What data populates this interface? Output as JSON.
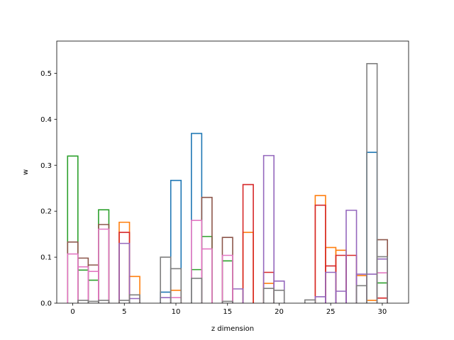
{
  "chart_data": {
    "type": "step",
    "xlabel": "z dimension",
    "ylabel": "w",
    "xlim": [
      -1.55,
      32.55
    ],
    "ylim": [
      0,
      0.57
    ],
    "xticks": [
      0,
      5,
      10,
      15,
      20,
      25,
      30
    ],
    "yticks": [
      0.0,
      0.1,
      0.2,
      0.3,
      0.4,
      0.5
    ],
    "ytick_labels": [
      "0.0",
      "0.1",
      "0.2",
      "0.3",
      "0.4",
      "0.5"
    ],
    "grid": false,
    "bins": 32,
    "series": [
      {
        "color": "#1f77b4",
        "values": [
          0,
          0,
          0,
          0,
          0,
          0,
          0,
          0,
          0,
          0.024,
          0.267,
          0,
          0.369,
          0,
          0,
          0,
          0,
          0,
          0,
          0,
          0,
          0,
          0,
          0,
          0,
          0,
          0,
          0,
          0,
          0.328,
          0,
          0
        ]
      },
      {
        "color": "#ff7f0e",
        "values": [
          0,
          0,
          0,
          0,
          0,
          0.176,
          0.058,
          0,
          0,
          0,
          0.028,
          0,
          0,
          0,
          0,
          0,
          0,
          0.154,
          0,
          0.043,
          0,
          0,
          0,
          0,
          0.234,
          0.121,
          0.115,
          0,
          0.06,
          0.006,
          0,
          0
        ]
      },
      {
        "color": "#2ca02c",
        "values": [
          0.32,
          0.072,
          0.05,
          0.203,
          0,
          0,
          0,
          0,
          0,
          0,
          0,
          0,
          0.073,
          0.145,
          0,
          0.092,
          0,
          0,
          0,
          0,
          0,
          0,
          0,
          0,
          0,
          0,
          0,
          0,
          0,
          0,
          0.044,
          0
        ]
      },
      {
        "color": "#d62728",
        "values": [
          0,
          0,
          0,
          0,
          0,
          0.154,
          0,
          0,
          0,
          0,
          0,
          0,
          0,
          0,
          0,
          0,
          0,
          0.258,
          0,
          0.067,
          0,
          0,
          0,
          0,
          0.213,
          0.081,
          0.104,
          0.104,
          0,
          0,
          0.011,
          0
        ]
      },
      {
        "color": "#9467bd",
        "values": [
          0,
          0,
          0,
          0,
          0,
          0.13,
          0.01,
          0,
          0,
          0.012,
          0,
          0,
          0,
          0,
          0,
          0,
          0.031,
          0,
          0,
          0.321,
          0.048,
          0,
          0,
          0,
          0.014,
          0.067,
          0.026,
          0.202,
          0.063,
          0.063,
          0.096,
          0
        ]
      },
      {
        "color": "#8c564b",
        "values": [
          0.133,
          0.098,
          0.083,
          0.171,
          0,
          0,
          0,
          0,
          0,
          0,
          0,
          0,
          0,
          0.23,
          0,
          0.143,
          0,
          0,
          0,
          0,
          0,
          0,
          0,
          0,
          0,
          0,
          0,
          0,
          0,
          0,
          0.138,
          0
        ]
      },
      {
        "color": "#e377c2",
        "values": [
          0.107,
          0.079,
          0.069,
          0.161,
          0,
          0,
          0,
          0,
          0,
          0,
          0.012,
          0,
          0.18,
          0.118,
          0,
          0.104,
          0,
          0,
          0,
          0,
          0,
          0,
          0,
          0,
          0,
          0,
          0,
          0,
          0,
          0,
          0.066,
          0
        ]
      },
      {
        "color": "#7f7f7f",
        "values": [
          0,
          0.006,
          0.004,
          0.006,
          0,
          0.006,
          0.018,
          0,
          0,
          0.1,
          0.075,
          0,
          0.054,
          0,
          0,
          0.004,
          0,
          0,
          0,
          0.032,
          0.028,
          0,
          0,
          0.007,
          0,
          0,
          0,
          0,
          0.038,
          0.521,
          0.101,
          0
        ]
      }
    ]
  }
}
